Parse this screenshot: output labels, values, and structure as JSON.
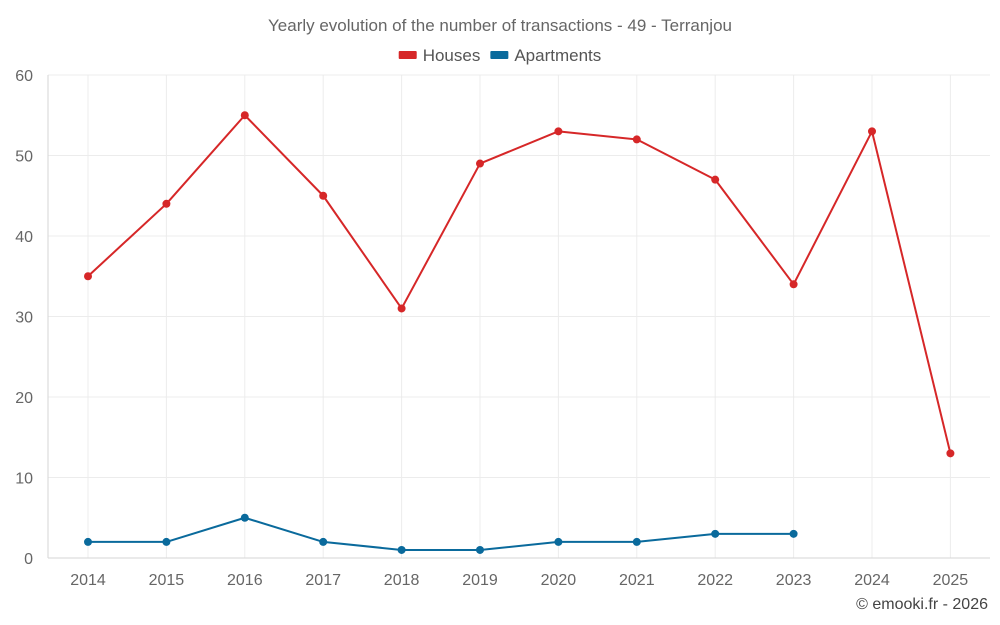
{
  "chart_data": {
    "type": "line",
    "title": "Yearly evolution of the number of transactions - 49 - Terranjou",
    "xlabel": "",
    "ylabel": "",
    "x": [
      "2014",
      "2015",
      "2016",
      "2017",
      "2018",
      "2019",
      "2020",
      "2021",
      "2022",
      "2023",
      "2024",
      "2025"
    ],
    "ylim": [
      0,
      60
    ],
    "yticks": [
      0,
      10,
      20,
      30,
      40,
      50,
      60
    ],
    "grid": true,
    "legend_position": "top-center",
    "series": [
      {
        "name": "Houses",
        "color": "#d62728",
        "values": [
          35,
          44,
          55,
          45,
          31,
          49,
          53,
          52,
          47,
          34,
          53,
          13
        ]
      },
      {
        "name": "Apartments",
        "color": "#0a6a9c",
        "values": [
          2,
          2,
          5,
          2,
          1,
          1,
          2,
          2,
          3,
          3,
          null,
          null
        ]
      }
    ]
  },
  "credit": "© emooki.fr - 2026"
}
